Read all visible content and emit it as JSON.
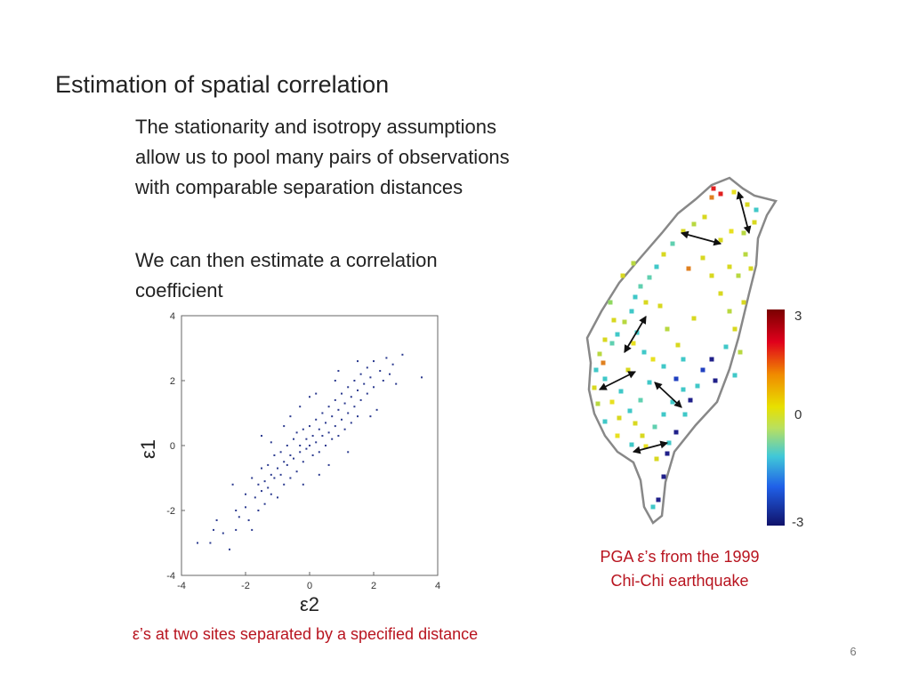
{
  "slide": {
    "title": "Estimation of spatial correlation",
    "paragraph1": [
      "The stationarity and isotropy assumptions",
      "allow us to pool many pairs of observations",
      "with comparable separation distances"
    ],
    "paragraph2": [
      "We can then estimate a correlation",
      "coefficient"
    ],
    "scatter_caption": "ε’s at two sites separated by a specified distance",
    "map_caption": [
      "PGA ε’s from the 1999",
      "Chi-Chi earthquake"
    ],
    "page_number": "6",
    "caption_color": "#b8141f"
  },
  "chart_data": [
    {
      "type": "scatter",
      "xlabel": "ε2",
      "ylabel": "ε1",
      "xlim": [
        -4,
        4
      ],
      "ylim": [
        -4,
        4
      ],
      "xticks": [
        "-4",
        "-2",
        "0",
        "2",
        "4"
      ],
      "yticks": [
        "4",
        "2",
        "0",
        "-2",
        "-4"
      ],
      "marker_color": "#2b3a8f",
      "grid": false,
      "points": [
        [
          -3.5,
          -3.0
        ],
        [
          -3.1,
          -3.0
        ],
        [
          -3.0,
          -2.6
        ],
        [
          -2.9,
          -2.3
        ],
        [
          -2.7,
          -2.7
        ],
        [
          -2.5,
          -3.2
        ],
        [
          -2.3,
          -2.6
        ],
        [
          -2.3,
          -2.0
        ],
        [
          -2.2,
          -2.2
        ],
        [
          -2.0,
          -1.9
        ],
        [
          -2.0,
          -1.5
        ],
        [
          -1.9,
          -2.3
        ],
        [
          -1.8,
          -1.0
        ],
        [
          -1.7,
          -1.6
        ],
        [
          -1.6,
          -1.2
        ],
        [
          -1.6,
          -2.0
        ],
        [
          -1.5,
          -1.4
        ],
        [
          -1.5,
          -0.7
        ],
        [
          -1.4,
          -1.1
        ],
        [
          -1.4,
          -1.8
        ],
        [
          -1.3,
          -0.6
        ],
        [
          -1.3,
          -1.3
        ],
        [
          -1.2,
          -0.9
        ],
        [
          -1.2,
          -1.5
        ],
        [
          -1.1,
          -0.3
        ],
        [
          -1.1,
          -1.0
        ],
        [
          -1.0,
          -0.7
        ],
        [
          -1.0,
          -1.6
        ],
        [
          -0.9,
          -0.2
        ],
        [
          -0.9,
          -0.9
        ],
        [
          -0.8,
          -0.5
        ],
        [
          -0.8,
          -1.2
        ],
        [
          -0.7,
          0.0
        ],
        [
          -0.7,
          -0.6
        ],
        [
          -0.6,
          -0.3
        ],
        [
          -0.6,
          -1.0
        ],
        [
          -0.5,
          0.2
        ],
        [
          -0.5,
          -0.4
        ],
        [
          -0.4,
          0.4
        ],
        [
          -0.4,
          -0.8
        ],
        [
          -0.3,
          0.0
        ],
        [
          -0.3,
          -0.2
        ],
        [
          -0.2,
          0.5
        ],
        [
          -0.2,
          -0.5
        ],
        [
          -0.1,
          0.2
        ],
        [
          -0.1,
          -0.1
        ],
        [
          0.0,
          0.6
        ],
        [
          0.0,
          0.0
        ],
        [
          0.1,
          0.3
        ],
        [
          0.1,
          -0.3
        ],
        [
          0.2,
          0.8
        ],
        [
          0.2,
          0.1
        ],
        [
          0.3,
          0.5
        ],
        [
          0.3,
          -0.2
        ],
        [
          0.4,
          1.0
        ],
        [
          0.4,
          0.3
        ],
        [
          0.5,
          0.7
        ],
        [
          0.5,
          0.0
        ],
        [
          0.6,
          1.2
        ],
        [
          0.6,
          0.4
        ],
        [
          0.7,
          0.9
        ],
        [
          0.7,
          0.2
        ],
        [
          0.8,
          1.4
        ],
        [
          0.8,
          0.6
        ],
        [
          0.9,
          1.1
        ],
        [
          0.9,
          0.3
        ],
        [
          1.0,
          1.6
        ],
        [
          1.0,
          0.8
        ],
        [
          1.1,
          1.3
        ],
        [
          1.1,
          0.5
        ],
        [
          1.2,
          1.8
        ],
        [
          1.2,
          1.0
        ],
        [
          1.3,
          1.5
        ],
        [
          1.3,
          0.7
        ],
        [
          1.4,
          2.0
        ],
        [
          1.4,
          1.2
        ],
        [
          1.5,
          1.7
        ],
        [
          1.5,
          0.9
        ],
        [
          1.6,
          2.2
        ],
        [
          1.6,
          1.4
        ],
        [
          1.7,
          1.9
        ],
        [
          1.8,
          2.4
        ],
        [
          1.8,
          1.6
        ],
        [
          1.9,
          2.1
        ],
        [
          2.0,
          2.6
        ],
        [
          2.0,
          1.8
        ],
        [
          2.2,
          2.3
        ],
        [
          2.3,
          2.0
        ],
        [
          2.4,
          2.7
        ],
        [
          2.5,
          2.2
        ],
        [
          2.6,
          2.5
        ],
        [
          2.7,
          1.9
        ],
        [
          2.9,
          2.8
        ],
        [
          3.5,
          2.1
        ],
        [
          -1.2,
          0.1
        ],
        [
          -0.6,
          0.9
        ],
        [
          0.2,
          1.6
        ],
        [
          0.9,
          2.3
        ],
        [
          -0.3,
          1.2
        ],
        [
          1.5,
          2.6
        ],
        [
          0.6,
          -0.6
        ],
        [
          1.2,
          -0.2
        ],
        [
          -0.8,
          0.6
        ],
        [
          -2.4,
          -1.2
        ],
        [
          -1.8,
          -2.6
        ],
        [
          2.1,
          1.1
        ],
        [
          1.9,
          0.9
        ],
        [
          0.3,
          -0.9
        ],
        [
          -0.2,
          -1.2
        ],
        [
          -1.5,
          0.3
        ],
        [
          0.0,
          1.5
        ],
        [
          0.8,
          2.0
        ]
      ]
    },
    {
      "type": "heatmap",
      "title": "",
      "colorbar_ticks": [
        "3",
        "0",
        "-3"
      ],
      "colorbar_range": [
        -3,
        3
      ]
    }
  ]
}
